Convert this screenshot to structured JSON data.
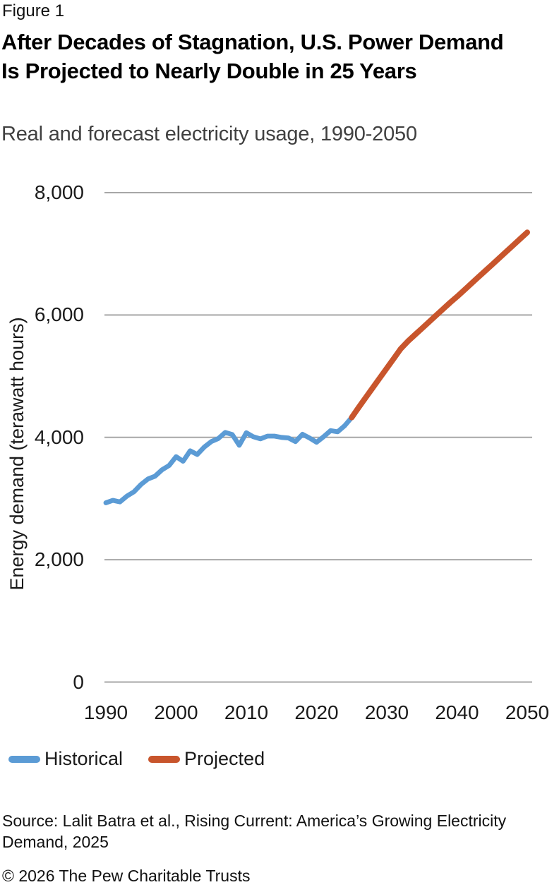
{
  "header": {
    "figure_label": "Figure 1",
    "title": "After Decades of Stagnation, U.S. Power Demand Is Projected to Nearly Double in 25 Years",
    "subtitle": "Real and forecast electricity usage, 1990-2050"
  },
  "footer": {
    "source": "Source: Lalit Batra et al., Rising Current: America’s Growing Electricity Demand, 2025",
    "copyright": "© 2026 The Pew Charitable Trusts"
  },
  "colors": {
    "historical": "#5B9BD5",
    "projected": "#C8552C",
    "gridline": "#A7A7A7"
  },
  "chart_data": {
    "type": "line",
    "title": "After Decades of Stagnation, U.S. Power Demand Is Projected to Nearly Double in 25 Years",
    "subtitle": "Real and forecast electricity usage, 1990-2050",
    "xlabel": "",
    "ylabel": "Energy demand (terawatt hours)",
    "xlim": [
      1990,
      2050
    ],
    "ylim": [
      0,
      8000
    ],
    "grid": "horizontal",
    "legend_position": "bottom",
    "y_ticks": [
      {
        "value": 0,
        "label": "0"
      },
      {
        "value": 2000,
        "label": "2,000"
      },
      {
        "value": 4000,
        "label": "4,000"
      },
      {
        "value": 6000,
        "label": "6,000"
      },
      {
        "value": 8000,
        "label": "8,000"
      }
    ],
    "x_ticks": [
      {
        "value": 1990,
        "label": "1990"
      },
      {
        "value": 2000,
        "label": "2000"
      },
      {
        "value": 2010,
        "label": "2010"
      },
      {
        "value": 2020,
        "label": "2020"
      },
      {
        "value": 2030,
        "label": "2030"
      },
      {
        "value": 2040,
        "label": "2040"
      },
      {
        "value": 2050,
        "label": "2050"
      }
    ],
    "series": [
      {
        "name": "Historical",
        "color_key": "historical",
        "start_year": 1990,
        "values": [
          2930,
          2970,
          2945,
          3040,
          3110,
          3230,
          3320,
          3365,
          3470,
          3540,
          3685,
          3610,
          3780,
          3720,
          3840,
          3930,
          3980,
          4080,
          4045,
          3870,
          4075,
          4010,
          3975,
          4020,
          4020,
          4000,
          3990,
          3930,
          4050,
          3990,
          3920,
          4010,
          4110,
          4090,
          4190,
          4325
        ]
      },
      {
        "name": "Projected",
        "color_key": "projected",
        "start_year": 2025,
        "values": [
          4325,
          4490,
          4650,
          4810,
          4970,
          5130,
          5290,
          5450,
          5570,
          5675,
          5780,
          5885,
          5990,
          6095,
          6200,
          6300,
          6405,
          6510,
          6615,
          6720,
          6825,
          6930,
          7035,
          7140,
          7245,
          7350
        ]
      }
    ]
  }
}
